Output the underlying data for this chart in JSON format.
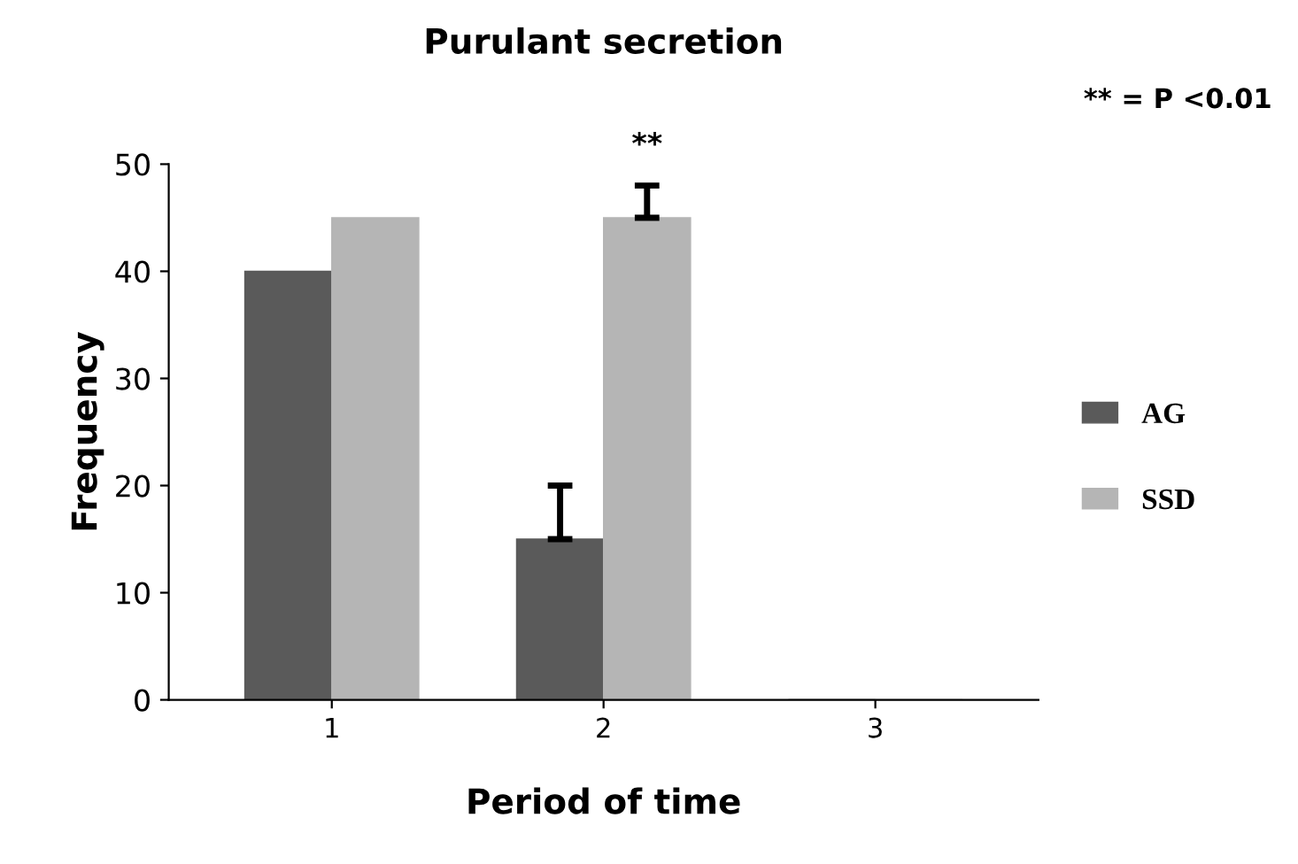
{
  "chart_data": {
    "type": "bar",
    "title": "Purulant secretion",
    "xlabel": "Period of time",
    "ylabel": "Frequency",
    "categories": [
      "1",
      "2",
      "3"
    ],
    "series": [
      {
        "name": "AG",
        "color": "#5a5a5a",
        "values": [
          40,
          15,
          0
        ],
        "errors": [
          null,
          [
            15,
            20
          ],
          null
        ]
      },
      {
        "name": "SSD",
        "color": "#b5b5b5",
        "values": [
          45,
          45,
          0
        ],
        "errors": [
          null,
          [
            45,
            48
          ],
          null
        ]
      }
    ],
    "ylim": [
      0,
      50
    ],
    "yticks": [
      0,
      10,
      20,
      30,
      40,
      50
    ],
    "grid": false,
    "legend": "right",
    "annotations": [
      {
        "text": "**",
        "x": "2",
        "y": 45
      },
      "** = P <0.01"
    ]
  }
}
